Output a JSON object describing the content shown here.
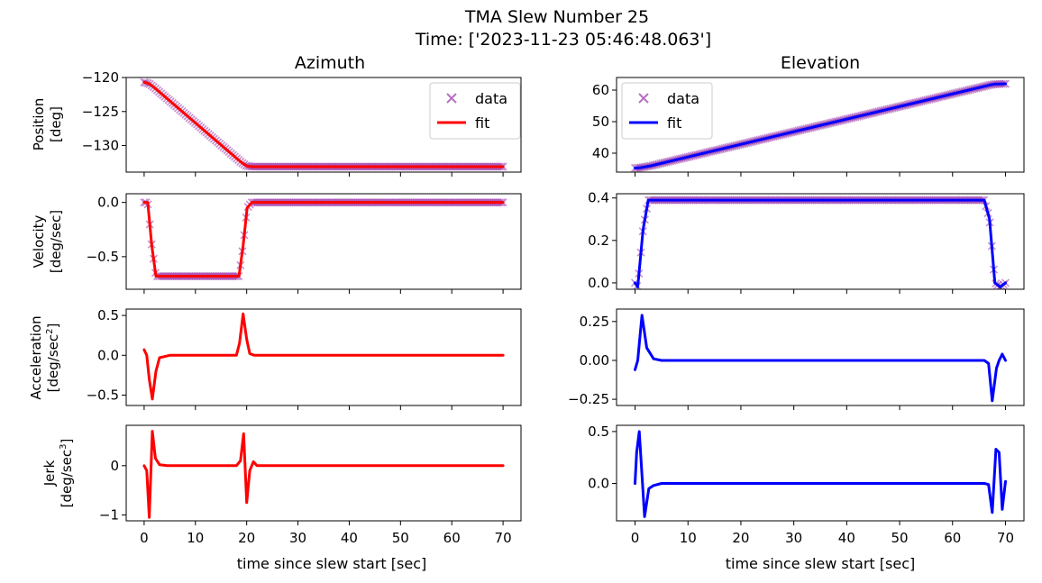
{
  "figure": {
    "title_line1": "TMA Slew Number 25",
    "title_line2": "Time: ['2023-11-23 05:46:48.063']",
    "column_titles": [
      "Azimuth",
      "Elevation"
    ],
    "xlabel": "time since slew start [sec]",
    "x_ticks": [
      0,
      10,
      20,
      30,
      40,
      50,
      60,
      70
    ],
    "row_ylabels": [
      [
        "Position",
        "[deg]"
      ],
      [
        "Velocity",
        "[deg/sec]"
      ],
      [
        "Acceleration",
        "[deg/sec",
        "2",
        "]"
      ],
      [
        "Jerk",
        "[deg/sec",
        "3",
        "]"
      ]
    ],
    "legend_labels": {
      "data": "data",
      "fit": "fit"
    },
    "colors": {
      "azimuth_fit": "#ff0000",
      "elevation_fit": "#0000ff",
      "data_marker": "#9933aa"
    }
  },
  "chart_data": [
    {
      "type": "line",
      "panel": "azimuth-position",
      "title": "Azimuth",
      "xlabel": "",
      "ylabel": "Position [deg]",
      "xlim": [
        -3.5,
        73.5
      ],
      "ylim": [
        -133.9,
        -120
      ],
      "yticks": [
        -120,
        -125,
        -130
      ],
      "ytick_labels": [
        "−120",
        "−125",
        "−130"
      ],
      "legend": "top-right",
      "series": [
        {
          "name": "data",
          "style": "markers",
          "x": [
            0,
            1,
            2,
            19,
            20,
            21,
            70
          ],
          "y": [
            -120.7,
            -120.9,
            -121.5,
            -132.5,
            -133.0,
            -133.1,
            -133.1
          ]
        },
        {
          "name": "fit",
          "color": "#ff0000",
          "x": [
            0,
            1,
            2,
            19,
            20,
            21,
            70
          ],
          "y": [
            -120.7,
            -120.9,
            -121.5,
            -132.5,
            -133.0,
            -133.1,
            -133.1
          ]
        }
      ]
    },
    {
      "type": "line",
      "panel": "elevation-position",
      "title": "Elevation",
      "xlabel": "",
      "ylabel": "",
      "xlim": [
        -3.5,
        73.5
      ],
      "ylim": [
        34,
        64
      ],
      "yticks": [
        40,
        50,
        60
      ],
      "ytick_labels": [
        "40",
        "50",
        "60"
      ],
      "legend": "top-left",
      "series": [
        {
          "name": "data",
          "style": "markers",
          "x": [
            0,
            1,
            3,
            67,
            68,
            70
          ],
          "y": [
            35.3,
            35.4,
            36.0,
            61.6,
            61.9,
            62.0
          ]
        },
        {
          "name": "fit",
          "color": "#0000ff",
          "x": [
            0,
            1,
            3,
            67,
            68,
            70
          ],
          "y": [
            35.3,
            35.4,
            36.0,
            61.6,
            61.9,
            62.0
          ]
        }
      ]
    },
    {
      "type": "line",
      "panel": "azimuth-velocity",
      "xlabel": "",
      "ylabel": "Velocity [deg/sec]",
      "xlim": [
        -3.5,
        73.5
      ],
      "ylim": [
        -0.8,
        0.08
      ],
      "yticks": [
        0,
        -0.5
      ],
      "ytick_labels": [
        "0.0",
        "−0.5"
      ],
      "series": [
        {
          "name": "data",
          "style": "markers",
          "x": [
            0,
            0.7,
            1.5,
            2.3,
            18.5,
            19.3,
            20.1,
            21,
            70
          ],
          "y": [
            0,
            0,
            -0.4,
            -0.68,
            -0.68,
            -0.4,
            -0.05,
            0,
            0
          ]
        },
        {
          "name": "fit",
          "color": "#ff0000",
          "x": [
            0,
            0.7,
            1.5,
            2.3,
            18.5,
            19.3,
            20.1,
            21,
            70
          ],
          "y": [
            0,
            0,
            -0.4,
            -0.68,
            -0.68,
            -0.4,
            -0.05,
            0,
            0
          ]
        }
      ]
    },
    {
      "type": "line",
      "panel": "elevation-velocity",
      "xlabel": "",
      "ylabel": "",
      "xlim": [
        -3.5,
        73.5
      ],
      "ylim": [
        -0.03,
        0.42
      ],
      "yticks": [
        0,
        0.2,
        0.4
      ],
      "ytick_labels": [
        "0.0",
        "0.2",
        "0.4"
      ],
      "series": [
        {
          "name": "data",
          "style": "markers",
          "x": [
            0,
            0.5,
            1.5,
            2.5,
            66,
            67,
            68,
            69,
            70
          ],
          "y": [
            0,
            -0.02,
            0.25,
            0.39,
            0.39,
            0.3,
            0,
            -0.02,
            0
          ]
        },
        {
          "name": "fit",
          "color": "#0000ff",
          "x": [
            0,
            0.5,
            1.5,
            2.5,
            66,
            67,
            68,
            69,
            70
          ],
          "y": [
            0,
            -0.02,
            0.25,
            0.39,
            0.39,
            0.3,
            0,
            -0.02,
            0
          ]
        }
      ]
    },
    {
      "type": "line",
      "panel": "azimuth-acceleration",
      "xlabel": "",
      "ylabel": "Acceleration [deg/sec2]",
      "xlim": [
        -3.5,
        73.5
      ],
      "ylim": [
        -0.63,
        0.58
      ],
      "yticks": [
        0.5,
        0,
        -0.5
      ],
      "ytick_labels": [
        "0.5",
        "0.0",
        "−0.5"
      ],
      "series": [
        {
          "name": "fit",
          "color": "#ff0000",
          "x": [
            0,
            0.5,
            1.0,
            1.6,
            2.3,
            3.0,
            5.0,
            18.0,
            18.6,
            19.3,
            20.0,
            20.6,
            21.5,
            70
          ],
          "y": [
            0.07,
            0.0,
            -0.3,
            -0.55,
            -0.2,
            -0.03,
            0,
            0,
            0.15,
            0.52,
            0.2,
            0.02,
            0,
            0
          ]
        }
      ]
    },
    {
      "type": "line",
      "panel": "elevation-acceleration",
      "xlabel": "",
      "ylabel": "",
      "xlim": [
        -3.5,
        73.5
      ],
      "ylim": [
        -0.29,
        0.33
      ],
      "yticks": [
        0.25,
        0,
        -0.25
      ],
      "ytick_labels": [
        "0.25",
        "0.00",
        "−0.25"
      ],
      "series": [
        {
          "name": "fit",
          "color": "#0000ff",
          "x": [
            0,
            0.5,
            1.3,
            2.2,
            3.5,
            5.0,
            66.0,
            66.8,
            67.5,
            68.3,
            68.8,
            69.4,
            70
          ],
          "y": [
            -0.06,
            0.0,
            0.29,
            0.08,
            0.01,
            0,
            0,
            -0.02,
            -0.26,
            -0.05,
            0.0,
            0.04,
            0.0
          ]
        }
      ]
    },
    {
      "type": "line",
      "panel": "azimuth-jerk",
      "xlabel": "time since slew start [sec]",
      "ylabel": "Jerk [deg/sec3]",
      "xlim": [
        -3.5,
        73.5
      ],
      "ylim": [
        -1.12,
        0.82
      ],
      "yticks": [
        0,
        -1
      ],
      "ytick_labels": [
        "0",
        "−1"
      ],
      "xticks": [
        0,
        10,
        20,
        30,
        40,
        50,
        60,
        70
      ],
      "series": [
        {
          "name": "fit",
          "color": "#ff0000",
          "x": [
            0,
            0.5,
            1.0,
            1.6,
            2.2,
            3.0,
            4.5,
            18.0,
            18.8,
            19.4,
            20.0,
            20.6,
            21.3,
            22.0,
            70
          ],
          "y": [
            0,
            -0.1,
            -1.05,
            0.7,
            0.15,
            0.02,
            0,
            0,
            0.1,
            0.65,
            -0.75,
            -0.1,
            0.08,
            0,
            0
          ]
        }
      ]
    },
    {
      "type": "line",
      "panel": "elevation-jerk",
      "xlabel": "time since slew start [sec]",
      "ylabel": "",
      "xlim": [
        -3.5,
        73.5
      ],
      "ylim": [
        -0.36,
        0.56
      ],
      "yticks": [
        0.5,
        0
      ],
      "ytick_labels": [
        "0.5",
        "0.0"
      ],
      "xticks": [
        0,
        10,
        20,
        30,
        40,
        50,
        60,
        70
      ],
      "series": [
        {
          "name": "fit",
          "color": "#0000ff",
          "x": [
            0,
            0.3,
            0.8,
            1.8,
            2.6,
            3.5,
            5,
            66,
            66.8,
            67.5,
            68.2,
            68.8,
            69.4,
            70
          ],
          "y": [
            0,
            0.3,
            0.5,
            -0.32,
            -0.05,
            -0.02,
            0,
            0,
            -0.01,
            -0.28,
            0.33,
            0.3,
            -0.25,
            0.02
          ]
        }
      ]
    }
  ]
}
